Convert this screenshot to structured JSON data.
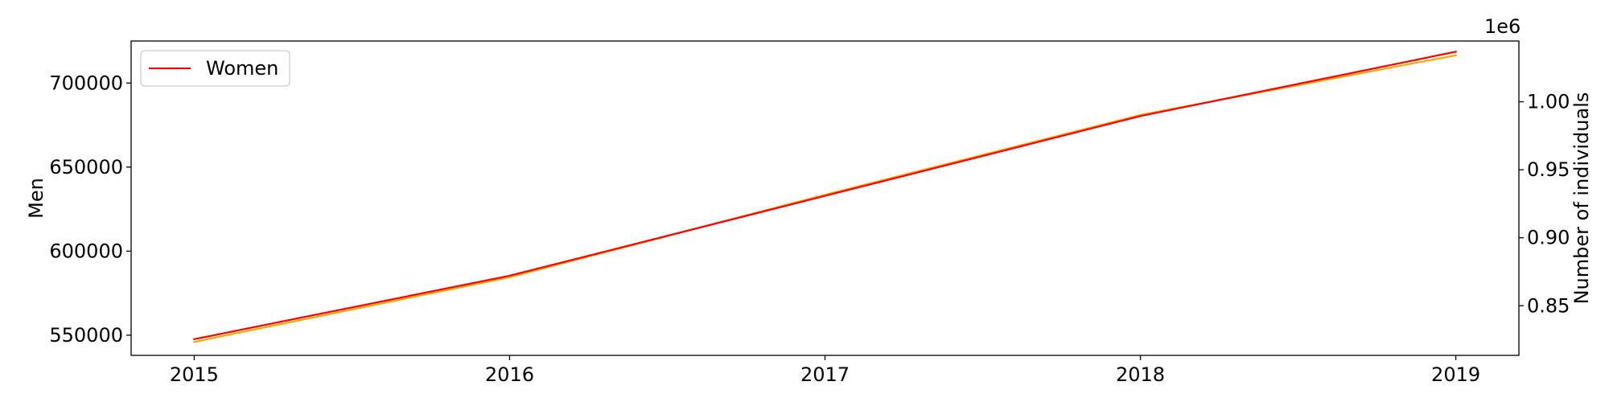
{
  "chart_data": {
    "type": "line",
    "x": [
      2015,
      2016,
      2017,
      2018,
      2019
    ],
    "x_ticks": [
      2015,
      2016,
      2017,
      2018,
      2019
    ],
    "x_tick_labels": [
      "2015",
      "2016",
      "2017",
      "2018",
      "2019"
    ],
    "xlim": [
      2014.8,
      2019.2
    ],
    "left_axis": {
      "label": "Men",
      "ylim": [
        538000,
        725000
      ],
      "ticks": [
        550000,
        600000,
        650000,
        700000
      ],
      "tick_labels": [
        "550000",
        "600000",
        "650000",
        "700000"
      ]
    },
    "right_axis": {
      "label": "Number of individuals",
      "ylim": [
        0.8135,
        1.0447
      ],
      "ticks": [
        0.85,
        0.9,
        0.95,
        1.0
      ],
      "tick_labels": [
        "0.85",
        "0.90",
        "0.95",
        "1.00"
      ],
      "offset_label": "1e6"
    },
    "series": [
      {
        "name": "",
        "axis": "left",
        "color": "#ffa500",
        "values": [
          546000,
          584500,
          633500,
          681000,
          716500
        ]
      },
      {
        "name": "Women",
        "axis": "right",
        "color": "#ff0000",
        "values": [
          825400,
          872100,
          930800,
          989500,
          1036800
        ]
      }
    ],
    "legend": {
      "placement": "upper-left",
      "entries": [
        "Women"
      ]
    },
    "grid": false
  }
}
